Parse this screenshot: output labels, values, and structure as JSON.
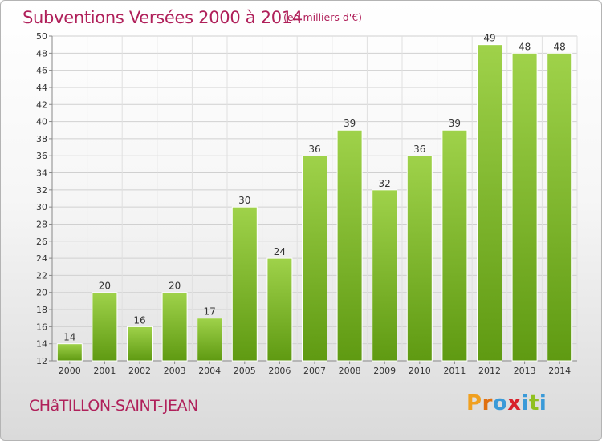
{
  "header": {
    "title": "Subventions Versées 2000 à 2014",
    "subtitle": "(en milliers d'€)"
  },
  "footer": {
    "commune": "CHâTILLON-SAINT-JEAN",
    "logo_text": "Proxiti"
  },
  "colors": {
    "title": "#b0205a",
    "bar_light": "#9fd24a",
    "bar_dark": "#5f9a12",
    "logo_letters": [
      "#f0a020",
      "#e07010",
      "#3a9ad8",
      "#d8202a",
      "#3a9ad8",
      "#90c020",
      "#3a9ad8"
    ]
  },
  "chart_data": {
    "type": "bar",
    "title": "Subventions Versées 2000 à 2014",
    "subtitle": "(en milliers d'€)",
    "categories": [
      "2000",
      "2001",
      "2002",
      "2003",
      "2004",
      "2005",
      "2006",
      "2007",
      "2008",
      "2009",
      "2010",
      "2011",
      "2012",
      "2013",
      "2014"
    ],
    "values": [
      14,
      20,
      16,
      20,
      17,
      30,
      24,
      36,
      39,
      32,
      36,
      39,
      49,
      48,
      48
    ],
    "ylim": [
      12,
      50
    ],
    "yticks": [
      12,
      14,
      16,
      18,
      20,
      22,
      24,
      26,
      28,
      30,
      32,
      34,
      36,
      38,
      40,
      42,
      44,
      46,
      48,
      50
    ],
    "xlabel": "",
    "ylabel": "",
    "grid": true,
    "legend": "none"
  }
}
